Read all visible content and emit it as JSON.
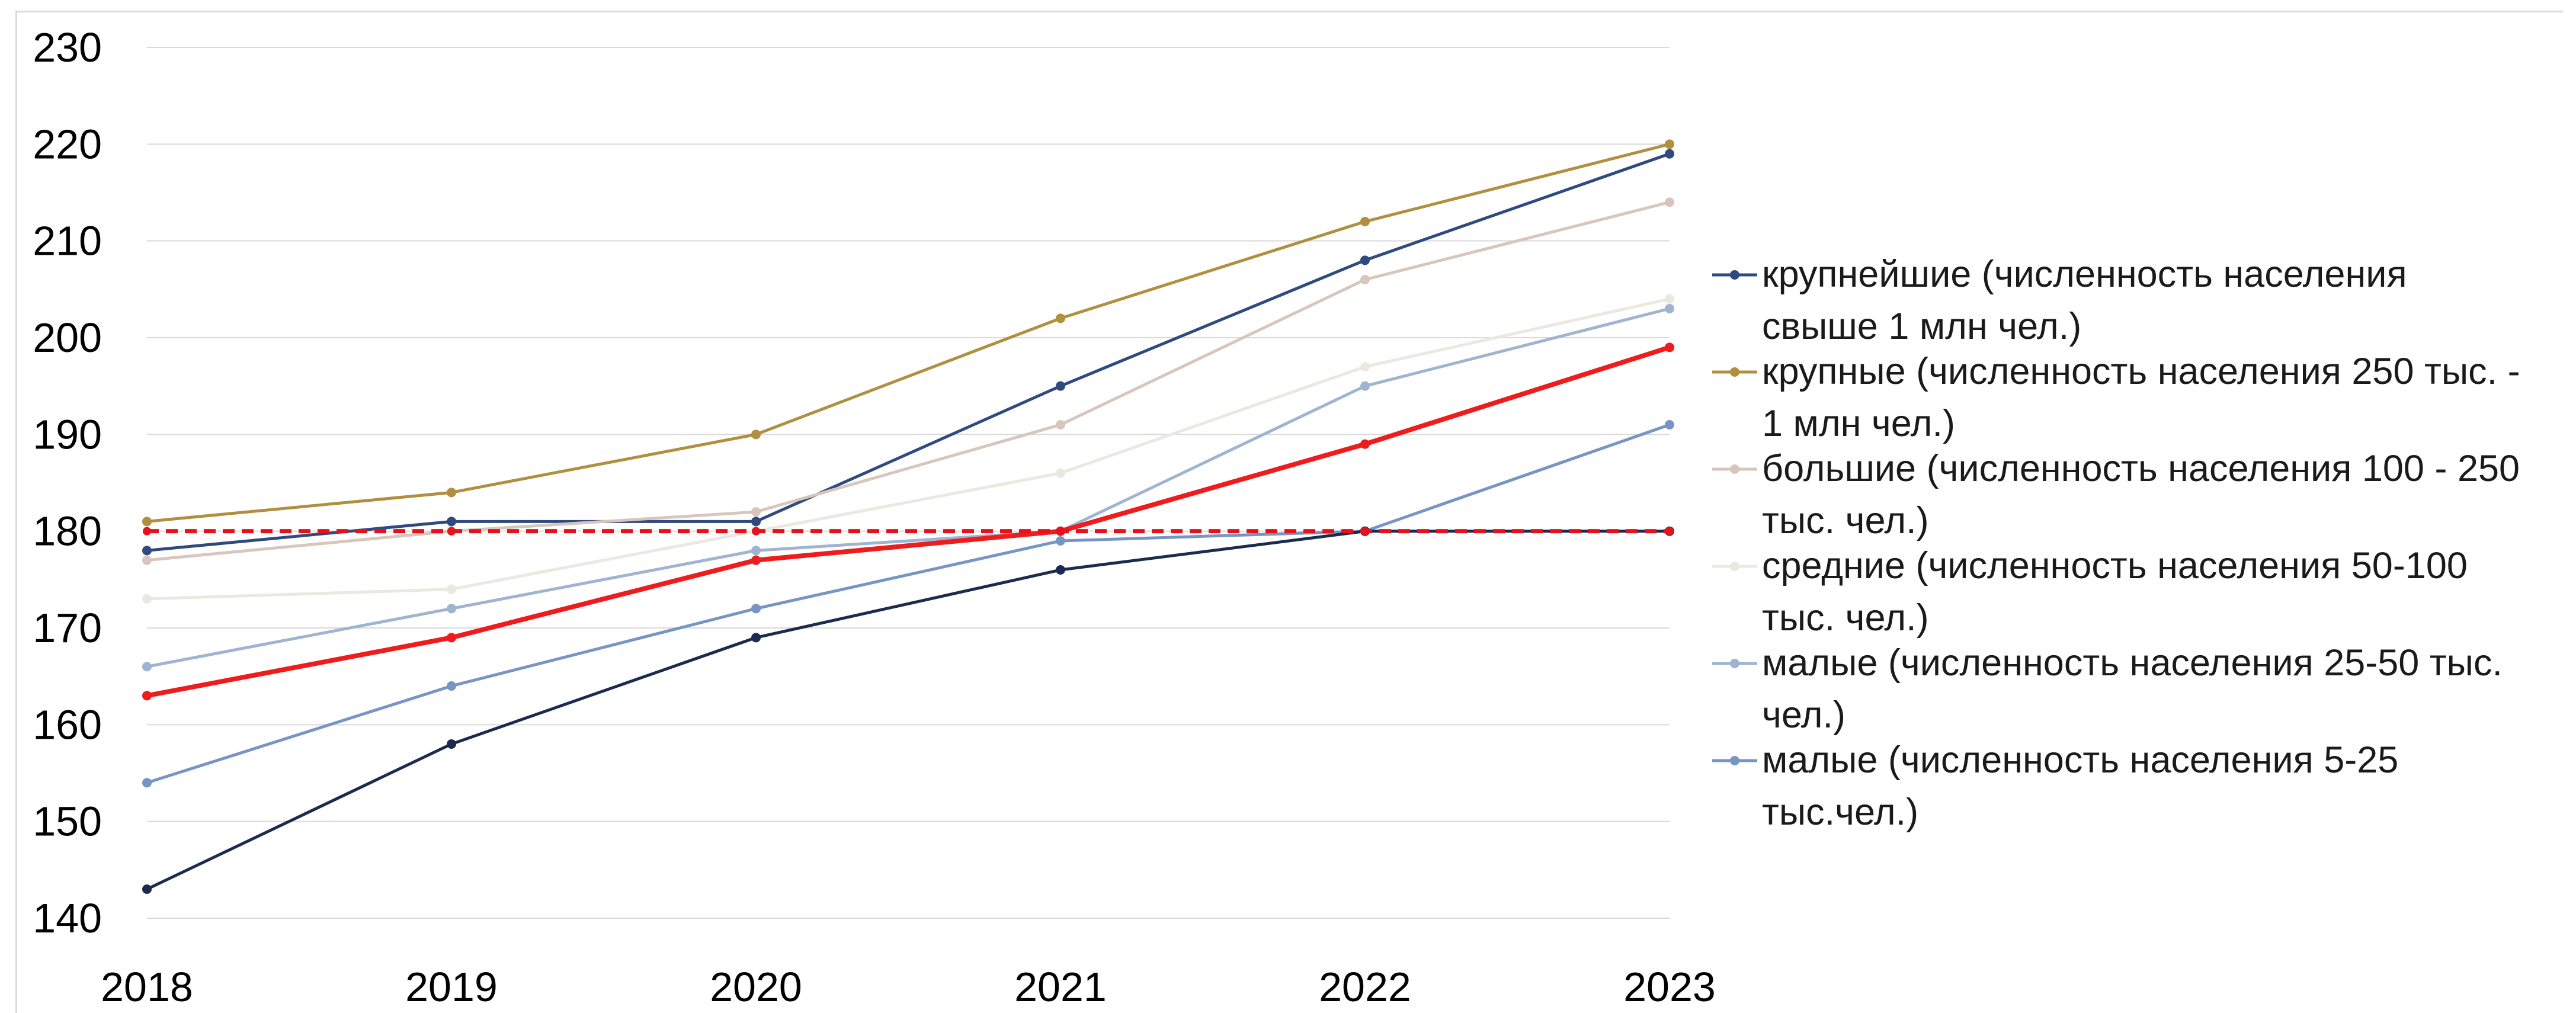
{
  "chart_data": {
    "type": "line",
    "title": "",
    "xlabel": "",
    "ylabel": "",
    "x": [
      "2018",
      "2019",
      "2020",
      "2021",
      "2022",
      "2023"
    ],
    "ylim": [
      140,
      230
    ],
    "yticks": [
      140,
      150,
      160,
      170,
      180,
      190,
      200,
      210,
      220,
      230
    ],
    "grid": "horizontal",
    "legend_position": "right",
    "series": [
      {
        "name": "крупнейшие (численность населения свыше 1 млн чел.)",
        "legend_lines": [
          "крупнейшие (численность населения",
          "свыше 1 млн чел.)"
        ],
        "color": "#2e4a7f",
        "values": [
          178,
          181,
          181,
          195,
          208,
          219
        ]
      },
      {
        "name": "крупные (численность населения 250 тыс. - 1 млн чел.)",
        "legend_lines": [
          "крупные (численность населения 250 тыс. -",
          "1 млн чел.)"
        ],
        "color": "#b08f3e",
        "values": [
          181,
          184,
          190,
          202,
          212,
          220
        ]
      },
      {
        "name": "большие (численность населения 100 - 250 тыс. чел.)",
        "legend_lines": [
          "большие (численность населения 100 - 250",
          "тыс. чел.)"
        ],
        "color": "#d8c6bc",
        "values": [
          177,
          180,
          182,
          191,
          206,
          214
        ]
      },
      {
        "name": "средние (численность населения 50-100 тыс. чел.)",
        "legend_lines": [
          "средние (численность населения 50-100",
          "тыс. чел.)"
        ],
        "color": "#ebe8df",
        "values": [
          173,
          174,
          180,
          186,
          197,
          204
        ]
      },
      {
        "name": "малые (численность населения 25-50 тыс. чел.)",
        "legend_lines": [
          "малые (численность населения 25-50 тыс.",
          "чел.)"
        ],
        "color": "#9fb4d0",
        "values": [
          166,
          172,
          178,
          180,
          195,
          203
        ]
      },
      {
        "name": "малые (численность населения 5-25 тыс.чел.)",
        "legend_lines": [
          "малые (численность населения 5-25",
          "тыс.чел.)"
        ],
        "color": "#7795c4",
        "values": [
          154,
          164,
          172,
          179,
          180,
          191
        ]
      }
    ],
    "extra_lines": [
      {
        "color": "#1a2b4f",
        "values": [
          143,
          158,
          169,
          176,
          180,
          180
        ]
      },
      {
        "color": "#ee1c1c",
        "values": [
          163,
          169,
          177,
          180,
          189,
          199
        ]
      },
      {
        "color": "#e8101a",
        "style": "dashed",
        "values": [
          180,
          180,
          180,
          180,
          180,
          180
        ]
      }
    ]
  }
}
